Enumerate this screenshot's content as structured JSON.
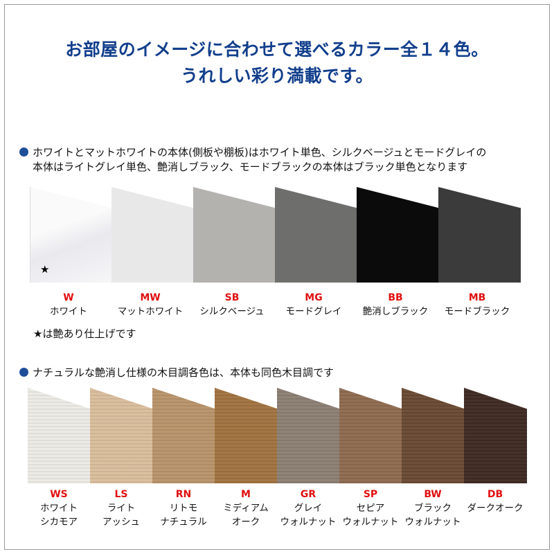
{
  "title_line1": "お部屋のイメージに合わせて選べるカラー全１４色。",
  "title_line2": "うれしい彩り満載です。",
  "section1": {
    "note_line1": "ホワイトとマットホワイトの本体(側板や棚板)はホワイト単色、シルクベージュとモードグレイの",
    "note_line2": "本体はライトグレイ単色、艶消しブラック、モードブラックの本体はブラック単色となります",
    "star_note": "★は艶あり仕上げです",
    "star": "★",
    "colors": [
      {
        "code": "W",
        "name": "ホワイト",
        "swatch": "#f3f3f5"
      },
      {
        "code": "MW",
        "name": "マットホワイト",
        "swatch": "#e8e8e8"
      },
      {
        "code": "SB",
        "name": "シルクベージュ",
        "swatch": "#b4b2af"
      },
      {
        "code": "MG",
        "name": "モードグレイ",
        "swatch": "#6e6f6d"
      },
      {
        "code": "BB",
        "name": "艶消しブラック",
        "swatch": "#0b0b0b"
      },
      {
        "code": "MB",
        "name": "モードブラック",
        "swatch": "#3b3b3b"
      }
    ]
  },
  "section2": {
    "note": "ナチュラルな艶消し仕様の木目調各色は、本体も同色木目調です",
    "colors": [
      {
        "code": "WS",
        "name1": "ホワイト",
        "name2": "シカモア",
        "swatch": "#ebeae4"
      },
      {
        "code": "LS",
        "name1": "ライト",
        "name2": "アッシュ",
        "swatch": "#d8bd9b"
      },
      {
        "code": "RN",
        "name1": "リトモ",
        "name2": "ナチュラル",
        "swatch": "#b8936a"
      },
      {
        "code": "M",
        "name1": "ミディアム",
        "name2": "オーク",
        "swatch": "#a0723f"
      },
      {
        "code": "GR",
        "name1": "グレイ",
        "name2": "ウォルナット",
        "swatch": "#8b7f73"
      },
      {
        "code": "SP",
        "name1": "セピア",
        "name2": "ウォルナット",
        "swatch": "#8e6a4f"
      },
      {
        "code": "BW",
        "name1": "ブラック",
        "name2": "ウォルナット",
        "swatch": "#694a33"
      },
      {
        "code": "DB",
        "name1": "ダークオーク",
        "name2": "",
        "swatch": "#3e2a22"
      }
    ]
  }
}
